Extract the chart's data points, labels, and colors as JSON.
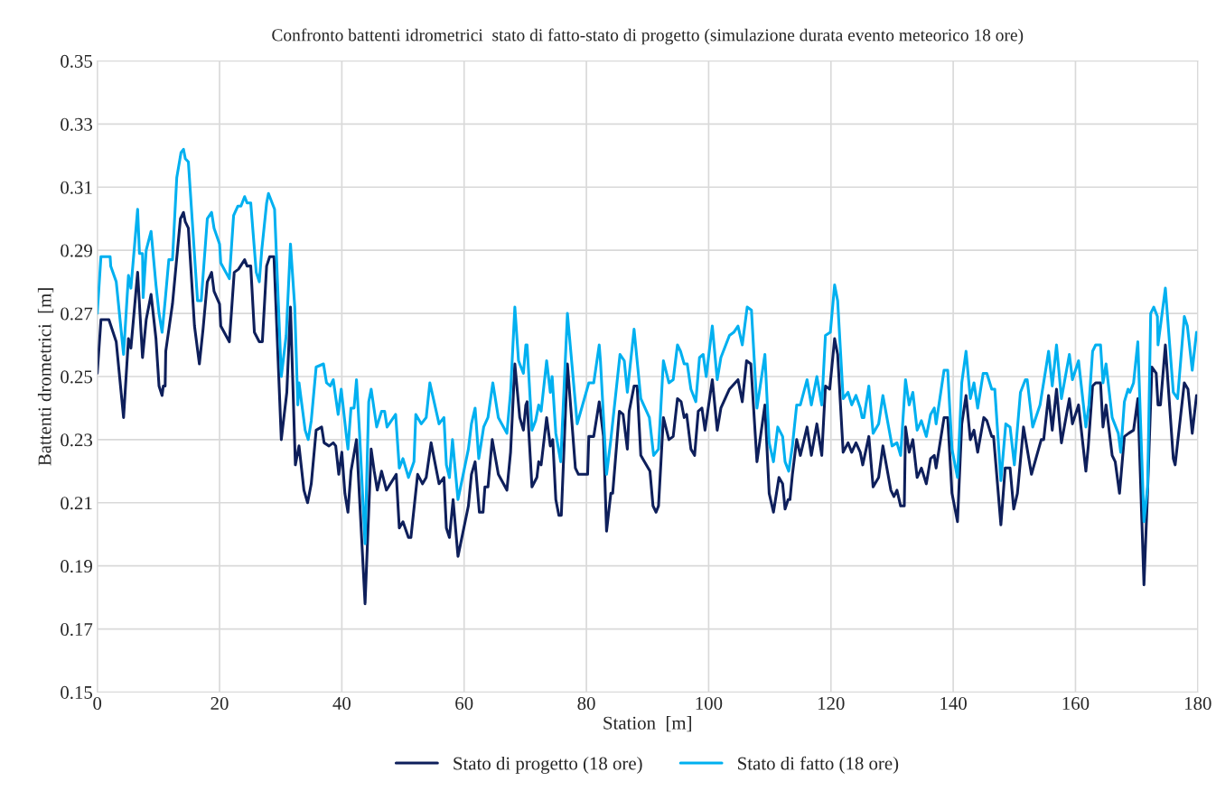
{
  "chart_data": {
    "type": "line",
    "title": "Confronto battenti idrometrici  stato di fatto-stato di progetto (simulazione durata evento meteorico 18 ore)",
    "xlabel": "Station  [m]",
    "ylabel": "Battenti drometrici  [m]",
    "xlim": [
      0,
      180
    ],
    "xticks": [
      0,
      20,
      40,
      60,
      80,
      100,
      120,
      140,
      160,
      180
    ],
    "ylim": [
      0.15,
      0.35
    ],
    "yticks": [
      0.15,
      0.17,
      0.19,
      0.21,
      0.23,
      0.25,
      0.27,
      0.29,
      0.31,
      0.33,
      0.35
    ],
    "grid": true,
    "legend": "bottom",
    "line_style": "solid",
    "marker": "none",
    "series": [
      {
        "name": "Stato di progetto (18 ore)",
        "color": "#0e1f5b",
        "x": [
          0,
          0.6,
          1.9,
          3.1,
          4.3,
          5.1,
          5.5,
          6.6,
          7.4,
          8.0,
          8.8,
          9.6,
          10.1,
          10.6,
          10.8,
          11.1,
          11.2,
          12.3,
          13.6,
          14.1,
          14.4,
          14.9,
          15.9,
          16.7,
          17.3,
          18.0,
          18.7,
          19.1,
          20.0,
          20.2,
          21.6,
          22.4,
          23.1,
          24.1,
          24.5,
          25.1,
          25.7,
          26.5,
          27.0,
          27.7,
          28.2,
          28.9,
          30.1,
          31.0,
          31.6,
          32.4,
          33.0,
          33.8,
          34.4,
          35.0,
          35.8,
          36.7,
          37.1,
          37.9,
          38.6,
          39.0,
          39.5,
          40.0,
          40.5,
          41.0,
          41.5,
          42.4,
          43.8,
          44.8,
          45.3,
          45.8,
          46.5,
          47.3,
          48.9,
          49.4,
          50.0,
          50.9,
          51.3,
          52.4,
          53.2,
          53.8,
          54.6,
          55.9,
          56.7,
          57.1,
          57.6,
          58.2,
          59.0,
          60.7,
          61.2,
          61.8,
          62.5,
          63.1,
          63.4,
          63.9,
          64.6,
          65.6,
          67.0,
          67.6,
          68.3,
          69.1,
          69.7,
          70.1,
          70.3,
          71.1,
          71.9,
          72.2,
          72.6,
          73.5,
          74.1,
          74.5,
          75.0,
          75.5,
          75.9,
          76.9,
          78.2,
          78.7,
          80.2,
          80.4,
          81.2,
          82.1,
          82.8,
          83.3,
          84.0,
          84.3,
          85.4,
          86.0,
          86.7,
          87.0,
          87.8,
          88.3,
          88.9,
          90.4,
          90.9,
          91.4,
          91.8,
          92.6,
          93.5,
          94.2,
          94.9,
          95.5,
          96.0,
          96.4,
          97.1,
          97.7,
          98.3,
          98.9,
          99.4,
          100.6,
          101.4,
          102.0,
          103.4,
          104.8,
          105.5,
          106.2,
          106.9,
          107.9,
          109.2,
          109.9,
          110.6,
          111.5,
          112.1,
          112.5,
          113.0,
          113.3,
          113.7,
          114.4,
          115.0,
          116.1,
          116.8,
          117.7,
          118.5,
          119.1,
          119.8,
          120.6,
          121.1,
          122.0,
          122.8,
          123.4,
          124.1,
          124.8,
          125.2,
          126.2,
          126.9,
          127.8,
          128.5,
          129.8,
          130.3,
          130.8,
          131.4,
          132.0,
          132.2,
          132.8,
          133.4,
          134.1,
          134.8,
          135.6,
          136.3,
          136.9,
          137.2,
          138.5,
          139.1,
          139.8,
          140.7,
          141.4,
          142.1,
          142.8,
          143.4,
          144.0,
          145.0,
          145.5,
          146.3,
          146.6,
          147.8,
          148.5,
          149.3,
          149.9,
          150.5,
          151.5,
          152.8,
          154.4,
          154.8,
          155.6,
          156.2,
          156.9,
          157.7,
          159.0,
          159.5,
          160.5,
          161.7,
          162.1,
          162.8,
          163.3,
          164.1,
          164.5,
          165.0,
          166.0,
          166.5,
          167.2,
          168.0,
          168.7,
          169.5,
          170.2,
          171.2,
          171.8,
          172.5,
          173.2,
          173.5,
          173.9,
          174.7,
          176.0,
          176.3,
          177.8,
          178.4,
          179.1,
          179.8
        ],
        "values": [
          0.251,
          0.268,
          0.268,
          0.261,
          0.237,
          0.262,
          0.259,
          0.283,
          0.256,
          0.268,
          0.276,
          0.262,
          0.247,
          0.244,
          0.247,
          0.247,
          0.258,
          0.273,
          0.3,
          0.302,
          0.299,
          0.297,
          0.266,
          0.254,
          0.265,
          0.28,
          0.283,
          0.277,
          0.273,
          0.266,
          0.261,
          0.283,
          0.284,
          0.287,
          0.285,
          0.285,
          0.264,
          0.261,
          0.261,
          0.285,
          0.288,
          0.288,
          0.23,
          0.245,
          0.272,
          0.222,
          0.228,
          0.214,
          0.21,
          0.216,
          0.233,
          0.234,
          0.229,
          0.228,
          0.229,
          0.228,
          0.219,
          0.226,
          0.213,
          0.207,
          0.22,
          0.23,
          0.178,
          0.227,
          0.22,
          0.214,
          0.22,
          0.214,
          0.219,
          0.202,
          0.204,
          0.199,
          0.199,
          0.219,
          0.216,
          0.218,
          0.229,
          0.216,
          0.218,
          0.202,
          0.199,
          0.211,
          0.193,
          0.209,
          0.219,
          0.223,
          0.207,
          0.207,
          0.215,
          0.215,
          0.23,
          0.219,
          0.214,
          0.226,
          0.254,
          0.237,
          0.233,
          0.241,
          0.242,
          0.215,
          0.218,
          0.223,
          0.222,
          0.237,
          0.228,
          0.23,
          0.211,
          0.206,
          0.206,
          0.254,
          0.221,
          0.219,
          0.219,
          0.231,
          0.231,
          0.242,
          0.231,
          0.201,
          0.213,
          0.213,
          0.239,
          0.238,
          0.227,
          0.239,
          0.247,
          0.247,
          0.225,
          0.22,
          0.209,
          0.207,
          0.209,
          0.237,
          0.23,
          0.231,
          0.243,
          0.242,
          0.237,
          0.238,
          0.227,
          0.225,
          0.239,
          0.24,
          0.233,
          0.249,
          0.233,
          0.24,
          0.246,
          0.249,
          0.242,
          0.255,
          0.254,
          0.223,
          0.241,
          0.213,
          0.207,
          0.218,
          0.216,
          0.208,
          0.211,
          0.211,
          0.219,
          0.23,
          0.225,
          0.234,
          0.225,
          0.235,
          0.225,
          0.247,
          0.246,
          0.262,
          0.257,
          0.226,
          0.229,
          0.226,
          0.229,
          0.226,
          0.222,
          0.231,
          0.215,
          0.218,
          0.228,
          0.214,
          0.212,
          0.214,
          0.209,
          0.209,
          0.234,
          0.226,
          0.23,
          0.218,
          0.221,
          0.216,
          0.224,
          0.225,
          0.221,
          0.237,
          0.237,
          0.213,
          0.204,
          0.235,
          0.244,
          0.23,
          0.233,
          0.226,
          0.237,
          0.236,
          0.231,
          0.231,
          0.203,
          0.221,
          0.221,
          0.208,
          0.213,
          0.234,
          0.219,
          0.23,
          0.23,
          0.244,
          0.233,
          0.246,
          0.229,
          0.243,
          0.235,
          0.241,
          0.22,
          0.228,
          0.247,
          0.248,
          0.248,
          0.234,
          0.241,
          0.225,
          0.223,
          0.213,
          0.231,
          0.232,
          0.233,
          0.243,
          0.184,
          0.214,
          0.253,
          0.251,
          0.241,
          0.241,
          0.26,
          0.224,
          0.222,
          0.248,
          0.246,
          0.232,
          0.244
        ]
      },
      {
        "name": "Stato di fatto (18 ore)",
        "color": "#00b0f0",
        "x": [
          0,
          0.6,
          2.1,
          2.2,
          3.1,
          4.3,
          5.1,
          5.5,
          6.6,
          6.9,
          7.4,
          7.5,
          8.0,
          8.8,
          9.6,
          10.1,
          10.6,
          11.1,
          11.7,
          12.3,
          13.0,
          13.7,
          14.1,
          14.4,
          14.9,
          16.4,
          17.0,
          18.0,
          18.7,
          19.1,
          20.0,
          20.2,
          21.6,
          22.3,
          23.0,
          23.5,
          24.1,
          24.5,
          25.1,
          26.0,
          26.5,
          26.9,
          27.7,
          28.0,
          29.0,
          30.1,
          30.9,
          31.6,
          32.3,
          32.8,
          33.0,
          34.0,
          34.5,
          35.0,
          35.8,
          37.0,
          37.5,
          38.1,
          38.6,
          39.4,
          39.9,
          40.7,
          41.0,
          41.5,
          42.0,
          42.4,
          42.9,
          43.8,
          44.4,
          44.8,
          45.7,
          46.5,
          47.0,
          47.4,
          48.8,
          49.4,
          50.0,
          50.9,
          51.8,
          52.1,
          53.0,
          53.8,
          54.4,
          55.9,
          56.7,
          57.1,
          57.6,
          58.1,
          59.0,
          60.7,
          61.2,
          61.8,
          62.4,
          63.2,
          63.9,
          64.7,
          65.6,
          67.0,
          67.6,
          68.3,
          68.9,
          69.7,
          70.1,
          70.3,
          71.1,
          71.7,
          72.2,
          72.6,
          73.5,
          74.1,
          74.4,
          75.0,
          75.8,
          76.9,
          78.5,
          80.4,
          81.2,
          82.1,
          82.3,
          83.3,
          84.0,
          85.5,
          86.2,
          86.7,
          87.8,
          88.9,
          90.3,
          91.0,
          91.8,
          92.6,
          93.5,
          94.2,
          94.9,
          95.4,
          96.0,
          96.5,
          97.1,
          97.9,
          98.5,
          99.1,
          99.6,
          100.6,
          101.4,
          102.0,
          103.4,
          104.1,
          104.8,
          105.5,
          106.3,
          107.0,
          107.9,
          109.2,
          109.9,
          110.6,
          111.3,
          112.1,
          112.5,
          113.1,
          113.7,
          114.4,
          115.0,
          116.1,
          116.8,
          117.7,
          118.5,
          119.1,
          119.9,
          120.6,
          121.1,
          122.0,
          122.8,
          123.4,
          124.1,
          124.8,
          125.1,
          125.4,
          126.2,
          126.9,
          127.8,
          128.5,
          130.0,
          130.8,
          131.4,
          132.2,
          132.8,
          133.4,
          134.1,
          134.8,
          135.6,
          136.3,
          136.9,
          137.2,
          138.5,
          139.1,
          139.8,
          140.7,
          141.4,
          142.1,
          142.8,
          143.4,
          144.0,
          144.9,
          145.5,
          146.3,
          146.8,
          147.8,
          148.6,
          149.3,
          150.0,
          151.0,
          151.8,
          152.1,
          153.0,
          154.2,
          155.2,
          155.6,
          156.2,
          156.9,
          157.7,
          159.0,
          159.5,
          160.5,
          161.7,
          162.2,
          162.8,
          163.3,
          164.1,
          164.5,
          165.0,
          166.0,
          167.0,
          167.4,
          168.0,
          168.6,
          168.9,
          169.5,
          170.2,
          171.2,
          171.8,
          172.3,
          172.8,
          173.4,
          173.5,
          174.7,
          176.0,
          176.7,
          177.8,
          178.3,
          179.1,
          179.8
        ],
        "values": [
          0.27,
          0.288,
          0.288,
          0.285,
          0.28,
          0.257,
          0.282,
          0.278,
          0.303,
          0.289,
          0.289,
          0.275,
          0.29,
          0.296,
          0.279,
          0.27,
          0.264,
          0.274,
          0.287,
          0.287,
          0.313,
          0.321,
          0.322,
          0.319,
          0.318,
          0.274,
          0.274,
          0.3,
          0.302,
          0.297,
          0.292,
          0.286,
          0.281,
          0.301,
          0.304,
          0.304,
          0.307,
          0.305,
          0.305,
          0.283,
          0.28,
          0.29,
          0.305,
          0.308,
          0.303,
          0.25,
          0.263,
          0.292,
          0.272,
          0.241,
          0.248,
          0.233,
          0.23,
          0.236,
          0.253,
          0.254,
          0.248,
          0.247,
          0.249,
          0.238,
          0.246,
          0.232,
          0.227,
          0.24,
          0.24,
          0.249,
          0.232,
          0.197,
          0.242,
          0.246,
          0.234,
          0.239,
          0.239,
          0.234,
          0.238,
          0.221,
          0.224,
          0.218,
          0.223,
          0.238,
          0.235,
          0.237,
          0.248,
          0.235,
          0.237,
          0.222,
          0.218,
          0.23,
          0.211,
          0.227,
          0.235,
          0.24,
          0.224,
          0.234,
          0.237,
          0.248,
          0.237,
          0.232,
          0.245,
          0.272,
          0.255,
          0.251,
          0.26,
          0.26,
          0.233,
          0.236,
          0.241,
          0.239,
          0.255,
          0.245,
          0.25,
          0.232,
          0.223,
          0.27,
          0.235,
          0.248,
          0.248,
          0.26,
          0.255,
          0.219,
          0.23,
          0.257,
          0.255,
          0.245,
          0.265,
          0.243,
          0.237,
          0.225,
          0.227,
          0.255,
          0.248,
          0.249,
          0.26,
          0.258,
          0.254,
          0.254,
          0.246,
          0.242,
          0.256,
          0.257,
          0.25,
          0.266,
          0.249,
          0.256,
          0.263,
          0.264,
          0.266,
          0.26,
          0.272,
          0.271,
          0.24,
          0.257,
          0.229,
          0.223,
          0.234,
          0.231,
          0.223,
          0.22,
          0.228,
          0.241,
          0.241,
          0.249,
          0.241,
          0.25,
          0.241,
          0.263,
          0.264,
          0.279,
          0.274,
          0.243,
          0.245,
          0.241,
          0.244,
          0.24,
          0.237,
          0.237,
          0.247,
          0.232,
          0.235,
          0.244,
          0.228,
          0.229,
          0.225,
          0.249,
          0.241,
          0.245,
          0.233,
          0.236,
          0.231,
          0.238,
          0.24,
          0.235,
          0.252,
          0.252,
          0.227,
          0.218,
          0.248,
          0.258,
          0.243,
          0.248,
          0.24,
          0.251,
          0.251,
          0.246,
          0.246,
          0.217,
          0.235,
          0.234,
          0.222,
          0.245,
          0.249,
          0.249,
          0.234,
          0.241,
          0.253,
          0.258,
          0.247,
          0.26,
          0.243,
          0.257,
          0.249,
          0.255,
          0.234,
          0.241,
          0.258,
          0.26,
          0.26,
          0.248,
          0.254,
          0.237,
          0.232,
          0.226,
          0.242,
          0.246,
          0.245,
          0.248,
          0.261,
          0.204,
          0.215,
          0.27,
          0.272,
          0.269,
          0.26,
          0.278,
          0.245,
          0.243,
          0.269,
          0.266,
          0.252,
          0.264
        ]
      }
    ]
  }
}
